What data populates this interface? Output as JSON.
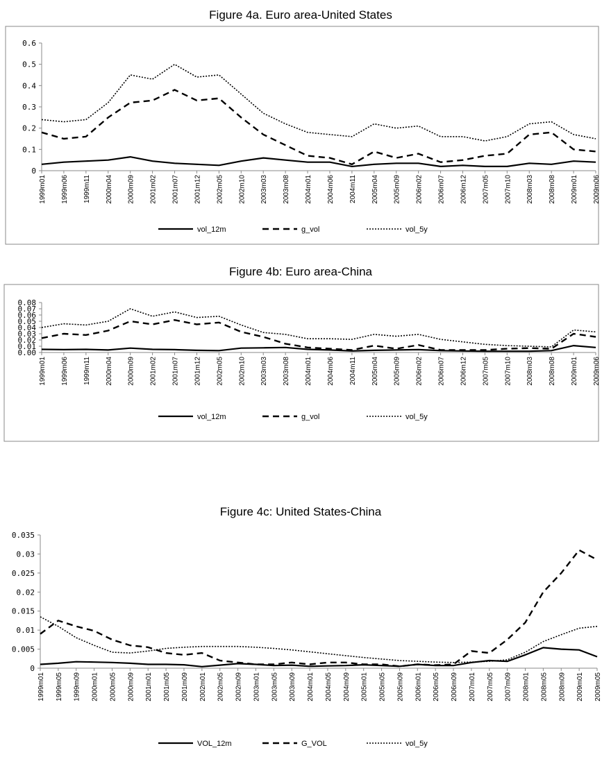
{
  "chart_data": [
    {
      "type": "line",
      "title": "Figure 4a. Euro area-United States",
      "categories": [
        "1999m01",
        "1999m06",
        "1999m11",
        "2000m04",
        "2000m09",
        "2001m02",
        "2001m07",
        "2001m12",
        "2002m05",
        "2002m10",
        "2003m03",
        "2003m08",
        "2004m01",
        "2004m06",
        "2004m11",
        "2005m04",
        "2005m09",
        "2006m02",
        "2006m07",
        "2006m12",
        "2007m05",
        "2007m10",
        "2008m03",
        "2008m08",
        "2009m01",
        "2009m06"
      ],
      "series": [
        {
          "name": "vol_12m",
          "color": "#000000",
          "line_style": "solid",
          "values": [
            0.03,
            0.04,
            0.045,
            0.05,
            0.065,
            0.045,
            0.035,
            0.03,
            0.025,
            0.045,
            0.06,
            0.05,
            0.04,
            0.04,
            0.02,
            0.03,
            0.035,
            0.035,
            0.02,
            0.025,
            0.02,
            0.02,
            0.035,
            0.03,
            0.045,
            0.04
          ]
        },
        {
          "name": "g_vol",
          "color": "#000000",
          "line_style": "dashed",
          "values": [
            0.18,
            0.15,
            0.16,
            0.25,
            0.32,
            0.33,
            0.38,
            0.33,
            0.34,
            0.25,
            0.17,
            0.12,
            0.07,
            0.06,
            0.03,
            0.09,
            0.06,
            0.08,
            0.04,
            0.05,
            0.07,
            0.08,
            0.17,
            0.18,
            0.1,
            0.09
          ]
        },
        {
          "name": "vol_5y",
          "color": "#000000",
          "line_style": "dotted",
          "values": [
            0.24,
            0.23,
            0.24,
            0.32,
            0.45,
            0.43,
            0.5,
            0.44,
            0.45,
            0.36,
            0.27,
            0.22,
            0.18,
            0.17,
            0.16,
            0.22,
            0.2,
            0.21,
            0.16,
            0.16,
            0.14,
            0.16,
            0.22,
            0.23,
            0.17,
            0.15
          ]
        }
      ],
      "ylim": [
        0,
        0.6
      ],
      "yticks": [
        0,
        0.1,
        0.2,
        0.3,
        0.4,
        0.5,
        0.6
      ],
      "grid": false,
      "legend": "bottom"
    },
    {
      "type": "line",
      "title": "Figure 4b: Euro area-China",
      "categories": [
        "1999m01",
        "1999m06",
        "1999m11",
        "2000m04",
        "2000m09",
        "2001m02",
        "2001m07",
        "2001m12",
        "2002m05",
        "2002m10",
        "2003m03",
        "2003m08",
        "2004m01",
        "2004m06",
        "2004m11",
        "2005m04",
        "2005m09",
        "2006m02",
        "2006m07",
        "2006m12",
        "2007m05",
        "2007m10",
        "2008m03",
        "2008m08",
        "2009m01",
        "2009m06"
      ],
      "series": [
        {
          "name": "vol_12m",
          "color": "#000000",
          "line_style": "solid",
          "values": [
            0.005,
            0.0045,
            0.005,
            0.004,
            0.007,
            0.005,
            0.0045,
            0.0035,
            0.003,
            0.007,
            0.0075,
            0.008,
            0.005,
            0.004,
            0.0025,
            0.0035,
            0.004,
            0.0045,
            0.003,
            0.0025,
            0.002,
            0.002,
            0.002,
            0.003,
            0.011,
            0.008
          ]
        },
        {
          "name": "g_vol",
          "color": "#000000",
          "line_style": "dashed",
          "values": [
            0.023,
            0.03,
            0.028,
            0.035,
            0.05,
            0.045,
            0.052,
            0.045,
            0.048,
            0.033,
            0.025,
            0.014,
            0.008,
            0.006,
            0.004,
            0.011,
            0.006,
            0.012,
            0.004,
            0.004,
            0.004,
            0.006,
            0.007,
            0.006,
            0.03,
            0.025
          ]
        },
        {
          "name": "vol_5y",
          "color": "#000000",
          "line_style": "dotted",
          "values": [
            0.04,
            0.046,
            0.044,
            0.05,
            0.07,
            0.058,
            0.065,
            0.056,
            0.058,
            0.044,
            0.032,
            0.029,
            0.022,
            0.022,
            0.021,
            0.029,
            0.026,
            0.029,
            0.021,
            0.017,
            0.013,
            0.011,
            0.01,
            0.009,
            0.036,
            0.033
          ]
        }
      ],
      "ylim": [
        0,
        0.08
      ],
      "yticks": [
        {
          "value": 0,
          "label": "0.00"
        },
        0.01,
        0.02,
        0.03,
        0.04,
        0.05,
        0.06,
        0.07,
        0.08
      ],
      "grid": false,
      "legend": "bottom"
    },
    {
      "type": "line",
      "title": "Figure 4c: United States-China",
      "categories": [
        "1999m01",
        "1999m05",
        "1999m09",
        "2000m01",
        "2000m05",
        "2000m09",
        "2001m01",
        "2001m05",
        "2001m09",
        "2002m01",
        "2002m05",
        "2002m09",
        "2003m01",
        "2003m05",
        "2003m09",
        "2004m01",
        "2004m05",
        "2004m09",
        "2005m01",
        "2005m05",
        "2005m09",
        "2006m01",
        "2006m05",
        "2006m09",
        "2007m01",
        "2007m05",
        "2007m09",
        "2008m01",
        "2008m05",
        "2008m09",
        "2009m01",
        "2009m05"
      ],
      "series": [
        {
          "name": "VOL_12m",
          "color": "#000000",
          "line_style": "solid",
          "values": [
            0.001,
            0.0013,
            0.0017,
            0.0016,
            0.0015,
            0.0013,
            0.001,
            0.001,
            0.0009,
            0.0004,
            0.0008,
            0.0012,
            0.001,
            0.0007,
            0.0008,
            0.0005,
            0.0006,
            0.0007,
            0.0009,
            0.0007,
            0.0005,
            0.001,
            0.0007,
            0.0007,
            0.0015,
            0.002,
            0.0018,
            0.0035,
            0.0054,
            0.005,
            0.0048,
            0.003
          ]
        },
        {
          "name": "G_VOL",
          "color": "#000000",
          "line_style": "dashed",
          "values": [
            0.009,
            0.0125,
            0.011,
            0.0098,
            0.0075,
            0.006,
            0.0055,
            0.004,
            0.0035,
            0.004,
            0.002,
            0.0015,
            0.001,
            0.001,
            0.0015,
            0.001,
            0.0015,
            0.0015,
            0.001,
            0.001,
            0.0005,
            0.001,
            0.0008,
            0.001,
            0.0045,
            0.004,
            0.0075,
            0.012,
            0.02,
            0.025,
            0.031,
            0.0285
          ]
        },
        {
          "name": "vol_5y",
          "color": "#000000",
          "line_style": "dotted",
          "values": [
            0.0135,
            0.011,
            0.008,
            0.006,
            0.0042,
            0.004,
            0.0045,
            0.0052,
            0.0055,
            0.0057,
            0.0057,
            0.0057,
            0.0055,
            0.0052,
            0.0048,
            0.0043,
            0.0038,
            0.0033,
            0.0028,
            0.0024,
            0.002,
            0.0018,
            0.0016,
            0.0015,
            0.0016,
            0.0018,
            0.0022,
            0.0042,
            0.007,
            0.0088,
            0.0105,
            0.011
          ]
        }
      ],
      "ylim": [
        0,
        0.035
      ],
      "yticks": [
        0,
        0.005,
        0.01,
        0.015,
        0.02,
        0.025,
        0.03,
        0.035
      ],
      "grid": false,
      "legend": "bottom"
    }
  ]
}
